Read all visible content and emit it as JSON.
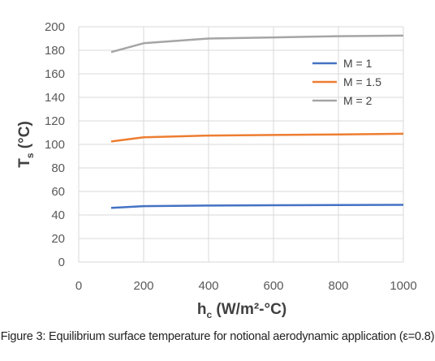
{
  "chart_data": {
    "type": "line",
    "xlabel_main": "h",
    "xlabel_sub": "c",
    "xlabel_unit": " (W/m²-°C)",
    "ylabel_main": "T",
    "ylabel_sub": "s",
    "ylabel_unit": " (°C)",
    "xlim": [
      0,
      1000
    ],
    "ylim": [
      0,
      200
    ],
    "x_ticks": [
      "0",
      "200",
      "400",
      "600",
      "800",
      "1000"
    ],
    "y_ticks": [
      "0",
      "20",
      "40",
      "60",
      "80",
      "100",
      "120",
      "140",
      "160",
      "180",
      "200"
    ],
    "grid": true,
    "legend_position": "right",
    "series": [
      {
        "name": "M = 1",
        "color": "#4472C4",
        "x": [
          100,
          200,
          400,
          600,
          800,
          1000
        ],
        "y": [
          46,
          47.5,
          48,
          48.3,
          48.5,
          48.6
        ]
      },
      {
        "name": "M = 1.5",
        "color": "#ED7D31",
        "x": [
          100,
          200,
          400,
          600,
          800,
          1000
        ],
        "y": [
          102.5,
          106,
          107.5,
          108,
          108.5,
          109
        ]
      },
      {
        "name": "M = 2",
        "color": "#A5A5A5",
        "x": [
          100,
          200,
          400,
          600,
          800,
          1000
        ],
        "y": [
          178.5,
          186,
          190,
          191,
          192,
          192.5
        ]
      }
    ]
  },
  "caption": "Figure 3: Equilibrium surface temperature for notional aerodynamic application (ε=0.8)"
}
